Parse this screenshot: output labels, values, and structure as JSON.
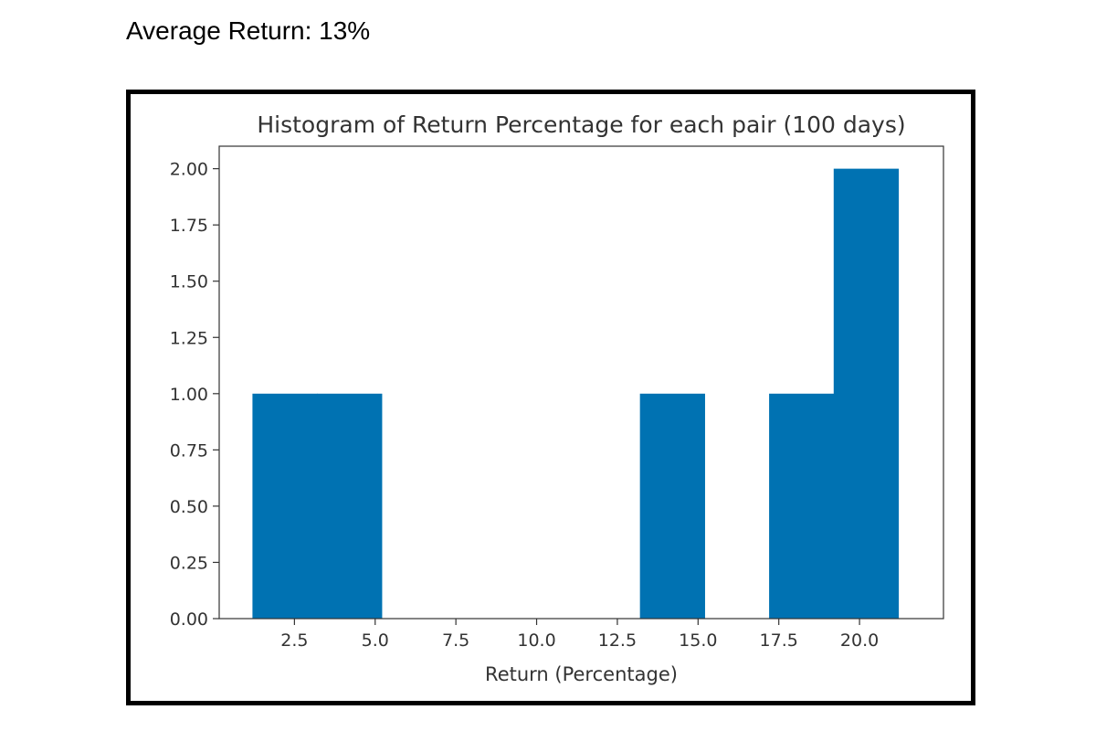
{
  "summary": {
    "text": "Average Return: 13%"
  },
  "chart_data": {
    "type": "bar",
    "title": "Histogram of Return Percentage for each pair (100 days)",
    "xlabel": "Return (Percentage)",
    "ylabel": "",
    "xlim": [
      0.17,
      22.6
    ],
    "ylim": [
      0,
      2.1
    ],
    "bins": [
      {
        "x0": 1.2,
        "x1": 3.2,
        "count": 1
      },
      {
        "x0": 3.2,
        "x1": 5.2,
        "count": 1
      },
      {
        "x0": 5.2,
        "x1": 7.2,
        "count": 0
      },
      {
        "x0": 7.2,
        "x1": 9.2,
        "count": 0
      },
      {
        "x0": 9.2,
        "x1": 11.2,
        "count": 0
      },
      {
        "x0": 11.2,
        "x1": 13.2,
        "count": 0
      },
      {
        "x0": 13.2,
        "x1": 15.2,
        "count": 1
      },
      {
        "x0": 15.2,
        "x1": 17.2,
        "count": 0
      },
      {
        "x0": 17.2,
        "x1": 19.2,
        "count": 1
      },
      {
        "x0": 19.2,
        "x1": 21.2,
        "count": 2
      }
    ],
    "xticks": [
      2.5,
      5.0,
      7.5,
      10.0,
      12.5,
      15.0,
      17.5,
      20.0
    ],
    "xtick_labels": [
      "2.5",
      "5.0",
      "7.5",
      "10.0",
      "12.5",
      "15.0",
      "17.5",
      "20.0"
    ],
    "yticks": [
      0,
      0.25,
      0.5,
      0.75,
      1.0,
      1.25,
      1.5,
      1.75,
      2.0
    ],
    "ytick_labels": [
      "0.00",
      "0.25",
      "0.50",
      "0.75",
      "1.00",
      "1.25",
      "1.50",
      "1.75",
      "2.00"
    ],
    "bar_color": "#0072b2",
    "grid": false
  }
}
